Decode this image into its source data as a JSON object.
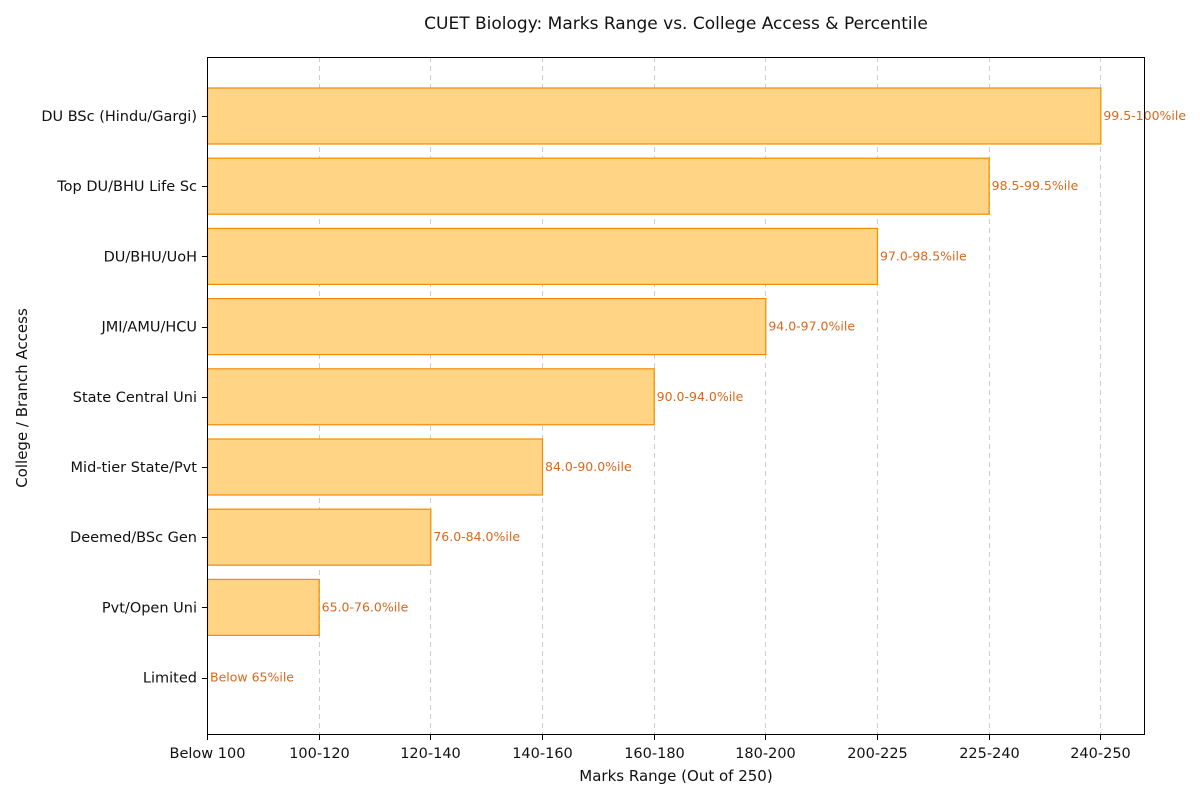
{
  "chart_data": {
    "type": "bar",
    "orientation": "horizontal",
    "title": "CUET Biology: Marks Range vs. College Access & Percentile",
    "xlabel": "Marks Range (Out of 250)",
    "ylabel": "College / Branch Access",
    "x_ticks": [
      "Below 100",
      "100-120",
      "120-140",
      "140-160",
      "160-180",
      "180-200",
      "200-225",
      "225-240",
      "240-250"
    ],
    "categories": [
      "DU BSc (Hindu/Gargi)",
      "Top DU/BHU Life Sc",
      "DU/BHU/UoH",
      "JMI/AMU/HCU",
      "State Central Uni",
      "Mid-tier State/Pvt",
      "Deemed/BSc Gen",
      "Pvt/Open Uni",
      "Limited"
    ],
    "values": [
      8,
      7,
      6,
      5,
      4,
      3,
      2,
      1,
      0
    ],
    "labels": [
      "99.5-100%ile",
      "98.5-99.5%ile",
      "97.0-98.5%ile",
      "94.0-97.0%ile",
      "90.0-94.0%ile",
      "84.0-90.0%ile",
      "76.0-84.0%ile",
      "65.0-76.0%ile",
      "Below 65%ile"
    ],
    "xlim": [
      0,
      8.4
    ],
    "grid": "vertical",
    "colors": {
      "bar_fill": "#FFD485",
      "bar_edge": "#F28C00",
      "label": "#D9681E"
    }
  }
}
